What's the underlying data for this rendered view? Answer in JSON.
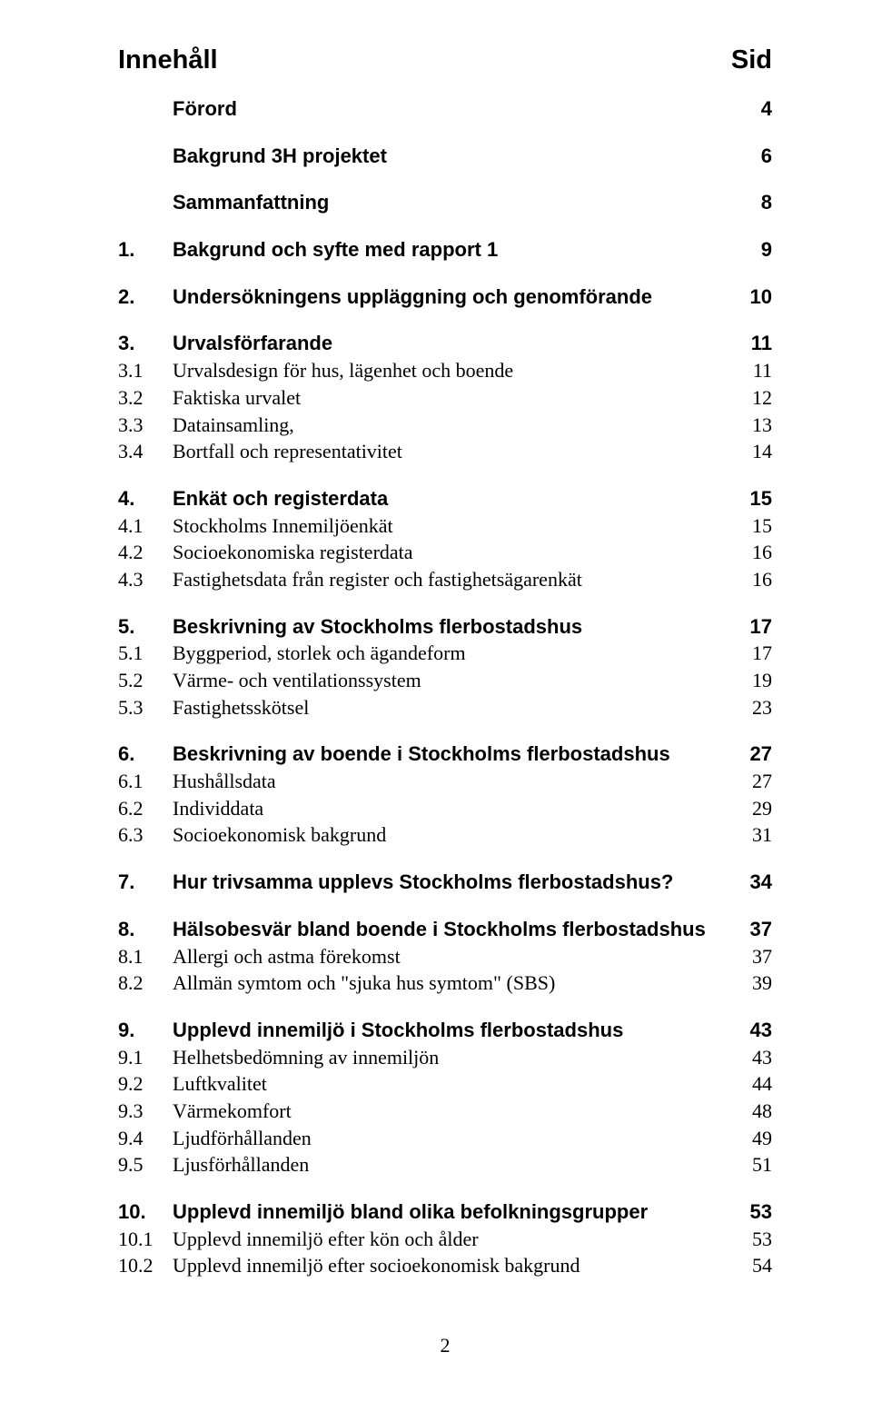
{
  "title": "Innehåll",
  "sid_label": "Sid",
  "footer_page": "2",
  "rows": [
    {
      "num": "",
      "label": "Förord",
      "page": "4",
      "bold": true,
      "gap": "big"
    },
    {
      "num": "",
      "label": "Bakgrund 3H projektet",
      "page": "6",
      "bold": true,
      "gap": "big"
    },
    {
      "num": "",
      "label": "Sammanfattning",
      "page": "8",
      "bold": true,
      "gap": "big"
    },
    {
      "num": "1.",
      "label": "Bakgrund och syfte med rapport 1",
      "page": "9",
      "bold": true,
      "gap": "big"
    },
    {
      "num": "2.",
      "label": "Undersökningens uppläggning och genomförande",
      "page": "10",
      "bold": true,
      "gap": "big"
    },
    {
      "num": "3.",
      "label": "Urvalsförfarande",
      "page": "11",
      "bold": true,
      "gap": "big"
    },
    {
      "num": "3.1",
      "label": "Urvalsdesign för hus, lägenhet och boende",
      "page": "11",
      "bold": false,
      "gap": "none"
    },
    {
      "num": "3.2",
      "label": "Faktiska urvalet",
      "page": "12",
      "bold": false,
      "gap": "none"
    },
    {
      "num": "3.3",
      "label": "Datainsamling,",
      "page": "13",
      "bold": false,
      "gap": "none"
    },
    {
      "num": "3.4",
      "label": "Bortfall och representativitet",
      "page": "14",
      "bold": false,
      "gap": "none"
    },
    {
      "num": "4.",
      "label": "Enkät och registerdata",
      "page": "15",
      "bold": true,
      "gap": "big"
    },
    {
      "num": "4.1",
      "label": "Stockholms Innemiljöenkät",
      "page": "15",
      "bold": false,
      "gap": "none"
    },
    {
      "num": "4.2",
      "label": "Socioekonomiska registerdata",
      "page": "16",
      "bold": false,
      "gap": "none"
    },
    {
      "num": "4.3",
      "label": "Fastighetsdata från register och fastighetsägarenkät",
      "page": "16",
      "bold": false,
      "gap": "none"
    },
    {
      "num": "5.",
      "label": "Beskrivning av Stockholms flerbostadshus",
      "page": "17",
      "bold": true,
      "gap": "big"
    },
    {
      "num": "5.1",
      "label": "Byggperiod, storlek och ägandeform",
      "page": "17",
      "bold": false,
      "gap": "none"
    },
    {
      "num": "5.2",
      "label": "Värme- och ventilationssystem",
      "page": "19",
      "bold": false,
      "gap": "none"
    },
    {
      "num": "5.3",
      "label": "Fastighetsskötsel",
      "page": "23",
      "bold": false,
      "gap": "none"
    },
    {
      "num": "6.",
      "label": "Beskrivning av boende i Stockholms flerbostadshus",
      "page": "27",
      "bold": true,
      "gap": "big"
    },
    {
      "num": "6.1",
      "label": "Hushållsdata",
      "page": "27",
      "bold": false,
      "gap": "none"
    },
    {
      "num": "6.2",
      "label": "Individdata",
      "page": "29",
      "bold": false,
      "gap": "none"
    },
    {
      "num": "6.3",
      "label": "Socioekonomisk bakgrund",
      "page": "31",
      "bold": false,
      "gap": "none"
    },
    {
      "num": "7.",
      "label": "Hur trivsamma upplevs Stockholms flerbostadshus?",
      "page": "34",
      "bold": true,
      "gap": "big"
    },
    {
      "num": "8.",
      "label": "Hälsobesvär bland boende i Stockholms flerbostadshus",
      "page": "37",
      "bold": true,
      "gap": "big"
    },
    {
      "num": "8.1",
      "label": "Allergi och astma förekomst",
      "page": "37",
      "bold": false,
      "gap": "none"
    },
    {
      "num": "8.2",
      "label": "Allmän symtom och \"sjuka hus symtom\" (SBS)",
      "page": "39",
      "bold": false,
      "gap": "none"
    },
    {
      "num": "9.",
      "label": " Upplevd innemiljö i Stockholms flerbostadshus",
      "page": "43",
      "bold": true,
      "gap": "big"
    },
    {
      "num": "9.1",
      "label": "Helhetsbedömning av innemiljön",
      "page": "43",
      "bold": false,
      "gap": "none"
    },
    {
      "num": "9.2",
      "label": "Luftkvalitet",
      "page": "44",
      "bold": false,
      "gap": "none"
    },
    {
      "num": "9.3",
      "label": "Värmekomfort",
      "page": "48",
      "bold": false,
      "gap": "none"
    },
    {
      "num": "9.4",
      "label": "Ljudförhållanden",
      "page": "49",
      "bold": false,
      "gap": "none"
    },
    {
      "num": "9.5",
      "label": "Ljusförhållanden",
      "page": "51",
      "bold": false,
      "gap": "none"
    },
    {
      "num": "10.",
      "label": "Upplevd innemiljö bland olika befolkningsgrupper",
      "page": "53",
      "bold": true,
      "gap": "big"
    },
    {
      "num": "10.1",
      "label": "Upplevd innemiljö efter kön och ålder",
      "page": "53",
      "bold": false,
      "gap": "none"
    },
    {
      "num": "10.2",
      "label": "Upplevd innemiljö efter socioekonomisk bakgrund",
      "page": "54",
      "bold": false,
      "gap": "none"
    }
  ]
}
